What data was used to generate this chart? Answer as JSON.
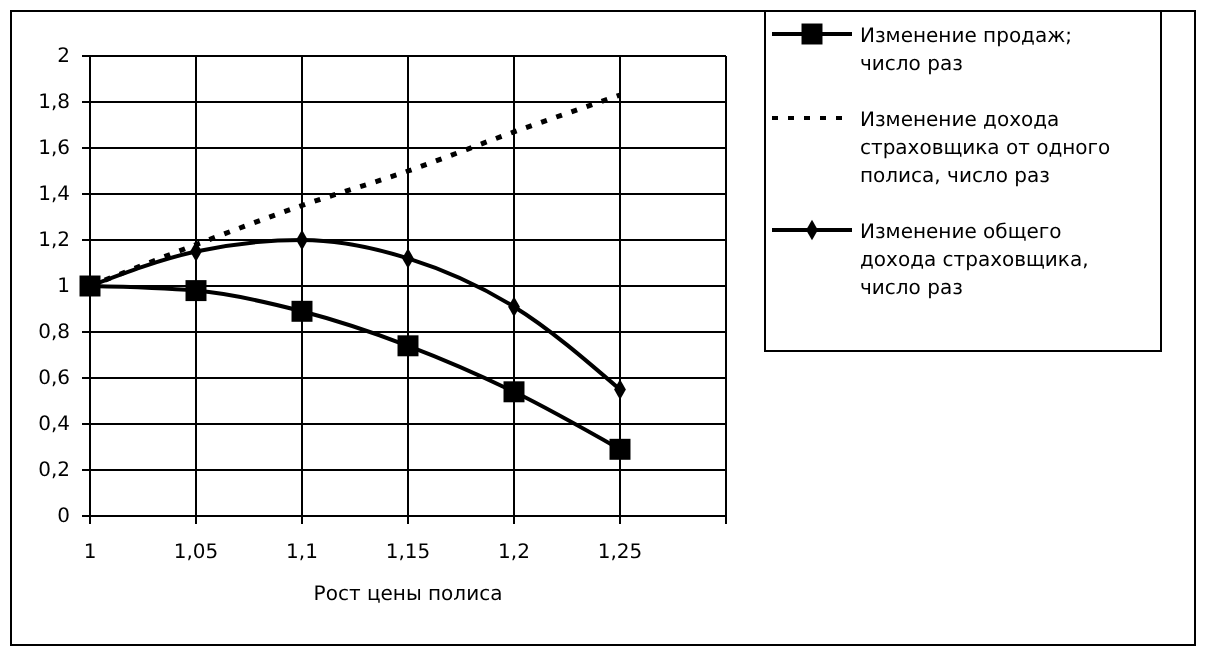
{
  "chart_data": {
    "type": "line",
    "xlabel": "Рост цены полиса",
    "x": [
      1,
      1.05,
      1.1,
      1.15,
      1.2,
      1.25
    ],
    "series": [
      {
        "name": "Изменение продаж; число раз",
        "color": "#000000",
        "marker": "square",
        "line_style": "solid",
        "values": [
          1.0,
          0.98,
          0.89,
          0.74,
          0.54,
          0.29
        ]
      },
      {
        "name": "Изменение дохода страховщика от одного полиса, число раз",
        "color": "#000000",
        "marker": "none",
        "line_style": "dotted",
        "values": [
          1.0,
          1.18,
          1.35,
          1.5,
          1.67,
          1.83
        ]
      },
      {
        "name": "Изменение общего дохода страховщика, число раз",
        "color": "#000000",
        "marker": "diamond",
        "line_style": "solid",
        "values": [
          1.0,
          1.15,
          1.2,
          1.12,
          0.91,
          0.55
        ]
      }
    ],
    "xlim": [
      1,
      1.3
    ],
    "xticks": [
      1,
      {
        "value": 1.05,
        "label": "1,05"
      },
      {
        "value": 1.1,
        "label": "1,1"
      },
      {
        "value": 1.15,
        "label": "1,15"
      },
      {
        "value": 1.2,
        "label": "1,2"
      },
      {
        "value": 1.25,
        "label": "1,25"
      },
      {
        "value": 1.3,
        "label": null
      }
    ],
    "ylim": [
      0,
      2
    ],
    "yticks": [
      0,
      {
        "value": 0.2,
        "label": "0,2"
      },
      {
        "value": 0.4,
        "label": "0,4"
      },
      {
        "value": 0.6,
        "label": "0,6"
      },
      {
        "value": 0.8,
        "label": "0,8"
      },
      1,
      {
        "value": 1.2,
        "label": "1,2"
      },
      {
        "value": 1.4,
        "label": "1,4"
      },
      {
        "value": 1.6,
        "label": "1,6"
      },
      {
        "value": 1.8,
        "label": "1,8"
      },
      2
    ],
    "grid": true,
    "legend": "right"
  }
}
